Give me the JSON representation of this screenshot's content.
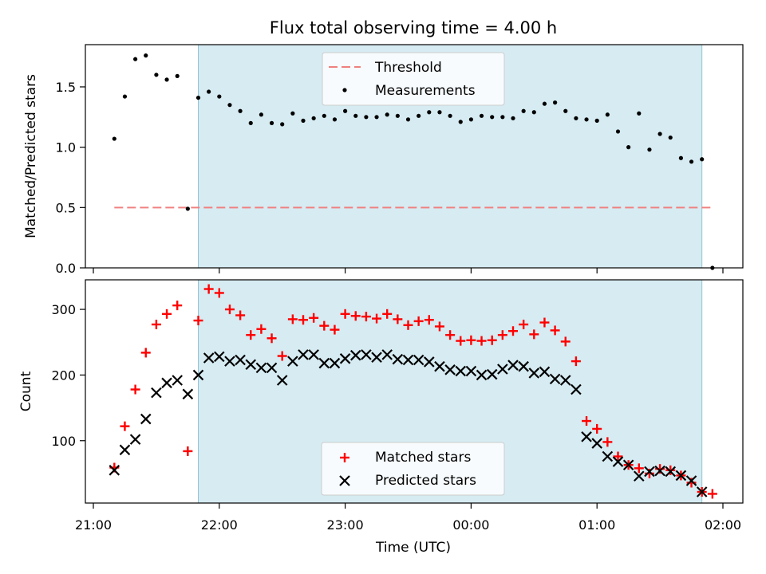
{
  "chart_data": [
    {
      "type": "scatter",
      "title": "Flux total observing time = 4.00 h",
      "ylabel": "Matched/Predicted stars",
      "xlabel": "",
      "ylim": [
        0.0,
        1.85
      ],
      "yticks": [
        "0.0",
        "0.5",
        "1.0",
        "1.5"
      ],
      "grid": false,
      "legend_position": "upper center",
      "shaded_interval": [
        "21:50",
        "01:50"
      ],
      "threshold": {
        "name": "Threshold",
        "value": 0.5,
        "x_range": [
          "21:10",
          "01:55"
        ],
        "color": "#f08080"
      },
      "series": [
        {
          "name": "Measurements",
          "color": "#000000",
          "x": [
            "21:10",
            "21:15",
            "21:20",
            "21:25",
            "21:30",
            "21:35",
            "21:40",
            "21:45",
            "21:50",
            "21:55",
            "22:00",
            "22:05",
            "22:10",
            "22:15",
            "22:20",
            "22:25",
            "22:30",
            "22:35",
            "22:40",
            "22:45",
            "22:50",
            "22:55",
            "23:00",
            "23:05",
            "23:10",
            "23:15",
            "23:20",
            "23:25",
            "23:30",
            "23:35",
            "23:40",
            "23:45",
            "23:50",
            "23:55",
            "00:00",
            "00:05",
            "00:10",
            "00:15",
            "00:20",
            "00:25",
            "00:30",
            "00:35",
            "00:40",
            "00:45",
            "00:50",
            "00:55",
            "01:00",
            "01:05",
            "01:10",
            "01:15",
            "01:20",
            "01:25",
            "01:30",
            "01:35",
            "01:40",
            "01:45",
            "01:50",
            "01:55"
          ],
          "values": [
            1.07,
            1.42,
            1.73,
            1.76,
            1.6,
            1.56,
            1.59,
            0.49,
            1.41,
            1.46,
            1.42,
            1.35,
            1.3,
            1.2,
            1.27,
            1.2,
            1.19,
            1.28,
            1.22,
            1.24,
            1.26,
            1.23,
            1.3,
            1.26,
            1.25,
            1.25,
            1.27,
            1.26,
            1.23,
            1.26,
            1.29,
            1.29,
            1.26,
            1.21,
            1.23,
            1.26,
            1.25,
            1.25,
            1.24,
            1.3,
            1.29,
            1.36,
            1.37,
            1.3,
            1.24,
            1.23,
            1.22,
            1.27,
            1.13,
            1.0,
            1.28,
            0.98,
            1.11,
            1.08,
            0.91,
            0.88,
            0.9,
            0.0
          ]
        }
      ]
    },
    {
      "type": "scatter",
      "title": "",
      "xlabel": "Time (UTC)",
      "ylabel": "Count",
      "ylim": [
        5,
        345
      ],
      "yticks": [
        "100",
        "200",
        "300"
      ],
      "xticks": [
        "21:00",
        "22:00",
        "23:00",
        "00:00",
        "01:00",
        "02:00"
      ],
      "grid": false,
      "legend_position": "lower center",
      "shaded_interval": [
        "21:50",
        "01:50"
      ],
      "series": [
        {
          "name": "Matched stars",
          "marker": "+",
          "color": "#ff0000",
          "x": [
            "21:10",
            "21:15",
            "21:20",
            "21:25",
            "21:30",
            "21:35",
            "21:40",
            "21:45",
            "21:50",
            "21:55",
            "22:00",
            "22:05",
            "22:10",
            "22:15",
            "22:20",
            "22:25",
            "22:30",
            "22:35",
            "22:40",
            "22:45",
            "22:50",
            "22:55",
            "23:00",
            "23:05",
            "23:10",
            "23:15",
            "23:20",
            "23:25",
            "23:30",
            "23:35",
            "23:40",
            "23:45",
            "23:50",
            "23:55",
            "00:00",
            "00:05",
            "00:10",
            "00:15",
            "00:20",
            "00:25",
            "00:30",
            "00:35",
            "00:40",
            "00:45",
            "00:50",
            "00:55",
            "01:00",
            "01:05",
            "01:10",
            "01:15",
            "01:20",
            "01:25",
            "01:30",
            "01:35",
            "01:40",
            "01:45",
            "01:50",
            "01:55"
          ],
          "values": [
            59,
            122,
            178,
            234,
            277,
            293,
            306,
            84,
            283,
            331,
            325,
            300,
            291,
            261,
            270,
            256,
            229,
            285,
            284,
            287,
            275,
            269,
            293,
            290,
            289,
            286,
            293,
            285,
            276,
            282,
            284,
            274,
            261,
            252,
            253,
            252,
            253,
            261,
            267,
            277,
            262,
            280,
            268,
            251,
            221,
            130,
            118,
            98,
            76,
            63,
            58,
            50,
            57,
            55,
            47,
            36,
            22,
            19
          ]
        },
        {
          "name": "Predicted stars",
          "marker": "x",
          "color": "#000000",
          "x": [
            "21:10",
            "21:15",
            "21:20",
            "21:25",
            "21:30",
            "21:35",
            "21:40",
            "21:45",
            "21:50",
            "21:55",
            "22:00",
            "22:05",
            "22:10",
            "22:15",
            "22:20",
            "22:25",
            "22:30",
            "22:35",
            "22:40",
            "22:45",
            "22:50",
            "22:55",
            "23:00",
            "23:05",
            "23:10",
            "23:15",
            "23:20",
            "23:25",
            "23:30",
            "23:35",
            "23:40",
            "23:45",
            "23:50",
            "23:55",
            "00:00",
            "00:05",
            "00:10",
            "00:15",
            "00:20",
            "00:25",
            "00:30",
            "00:35",
            "00:40",
            "00:45",
            "00:50",
            "00:55",
            "01:00",
            "01:05",
            "01:10",
            "01:15",
            "01:20",
            "01:25",
            "01:30",
            "01:35",
            "01:40",
            "01:45",
            "01:50"
          ],
          "values": [
            55,
            86,
            102,
            133,
            173,
            188,
            192,
            171,
            200,
            226,
            228,
            221,
            223,
            216,
            211,
            211,
            192,
            221,
            231,
            231,
            218,
            218,
            225,
            230,
            231,
            227,
            231,
            224,
            223,
            223,
            220,
            213,
            208,
            206,
            206,
            200,
            201,
            209,
            215,
            213,
            203,
            205,
            194,
            192,
            178,
            106,
            96,
            76,
            68,
            63,
            46,
            53,
            54,
            53,
            47,
            39,
            22
          ]
        }
      ]
    }
  ]
}
